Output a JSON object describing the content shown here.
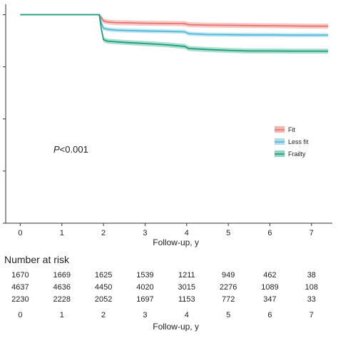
{
  "chart_data": {
    "type": "line",
    "title": "",
    "xlabel": "Follow-up, y",
    "ylabel": "",
    "xlim": [
      -0.35,
      7.5
    ],
    "ylim": [
      0,
      1.05
    ],
    "x_ticks": [
      "0",
      "1",
      "2",
      "3",
      "4",
      "5",
      "6",
      "7"
    ],
    "y_ticks": [
      0,
      0.25,
      0.5,
      0.75,
      1.0
    ],
    "grid": false,
    "legend_position": "right",
    "annotation": {
      "p_label": "P",
      "p_value": "<0.001"
    },
    "series": [
      {
        "name": "Fit",
        "color": "#e8756d",
        "band_color": "#f4b6b1",
        "x": [
          0,
          1.9,
          1.95,
          2.0,
          2.1,
          2.3,
          2.6,
          3.0,
          3.5,
          3.95,
          4.05,
          4.5,
          5.0,
          5.5,
          6.0,
          6.5,
          7.0,
          7.4
        ],
        "y": [
          1.0,
          1.0,
          0.985,
          0.97,
          0.965,
          0.962,
          0.961,
          0.959,
          0.958,
          0.957,
          0.952,
          0.95,
          0.949,
          0.948,
          0.947,
          0.946,
          0.945,
          0.945
        ],
        "ci_halfwidth": 0.012
      },
      {
        "name": "Less fit",
        "color": "#4fb8d6",
        "band_color": "#aeddee",
        "x": [
          0,
          1.9,
          1.95,
          2.0,
          2.1,
          2.3,
          2.6,
          3.0,
          3.5,
          3.95,
          4.05,
          4.5,
          5.0,
          5.5,
          6.0,
          6.5,
          7.0,
          7.4
        ],
        "y": [
          1.0,
          1.0,
          0.96,
          0.935,
          0.93,
          0.926,
          0.924,
          0.922,
          0.92,
          0.918,
          0.909,
          0.905,
          0.904,
          0.903,
          0.903,
          0.902,
          0.902,
          0.902
        ],
        "ci_halfwidth": 0.01
      },
      {
        "name": "Frailty",
        "color": "#1e9e7c",
        "band_color": "#8fd3bf",
        "x": [
          0,
          1.9,
          1.95,
          2.0,
          2.1,
          2.3,
          2.6,
          3.0,
          3.5,
          3.95,
          4.05,
          4.5,
          5.0,
          5.5,
          6.0,
          6.5,
          7.0,
          7.4
        ],
        "y": [
          1.0,
          1.0,
          0.93,
          0.88,
          0.873,
          0.87,
          0.866,
          0.862,
          0.856,
          0.848,
          0.838,
          0.833,
          0.829,
          0.826,
          0.826,
          0.825,
          0.825,
          0.825
        ],
        "ci_halfwidth": 0.012
      }
    ]
  },
  "risk_table": {
    "title": "Number at risk",
    "times": [
      "0",
      "1",
      "2",
      "3",
      "4",
      "5",
      "6",
      "7"
    ],
    "rows": [
      [
        "1670",
        "1669",
        "1625",
        "1539",
        "1211",
        "949",
        "462",
        "38"
      ],
      [
        "4637",
        "4636",
        "4450",
        "4020",
        "3015",
        "2276",
        "1089",
        "108"
      ],
      [
        "2230",
        "2228",
        "2052",
        "1697",
        "1153",
        "772",
        "347",
        "33"
      ]
    ],
    "xlabel": "Follow-up, y"
  }
}
